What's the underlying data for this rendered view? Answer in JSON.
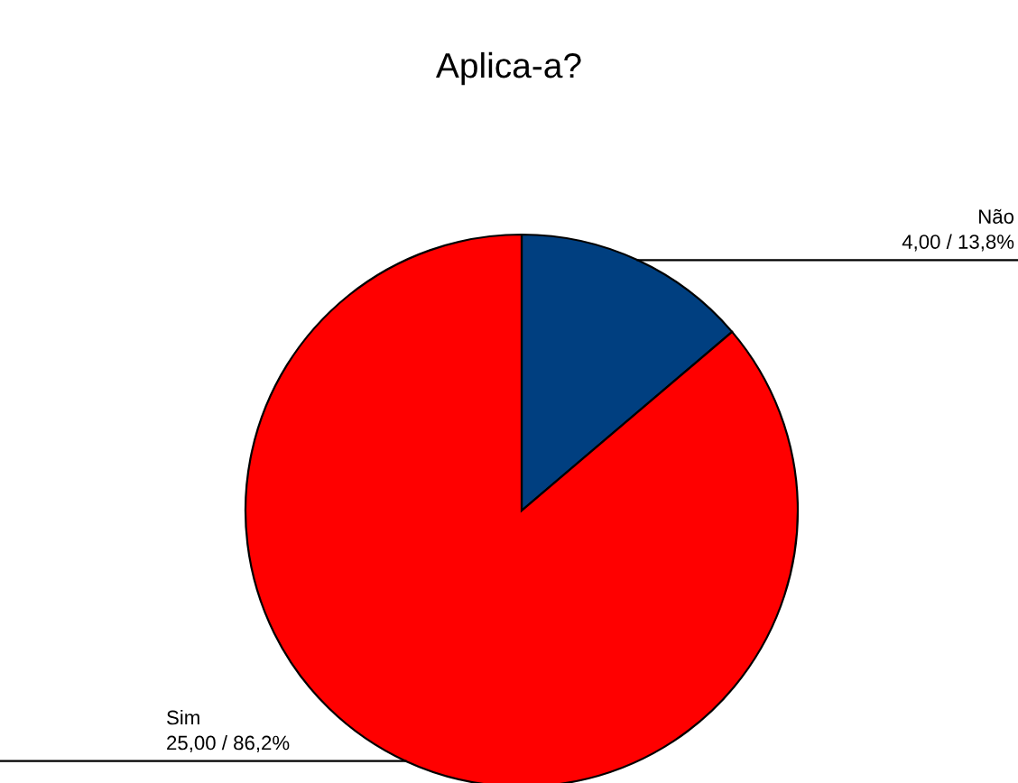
{
  "chart_data": {
    "type": "pie",
    "title": "Aplica-a?",
    "categories": [
      "Não",
      "Sim"
    ],
    "values": [
      4,
      25
    ],
    "colors": [
      "#003f80",
      "#ff0000"
    ],
    "value_labels": [
      "4,00 / 13,8%",
      "25,00 / 86,2%"
    ],
    "legend": false
  }
}
